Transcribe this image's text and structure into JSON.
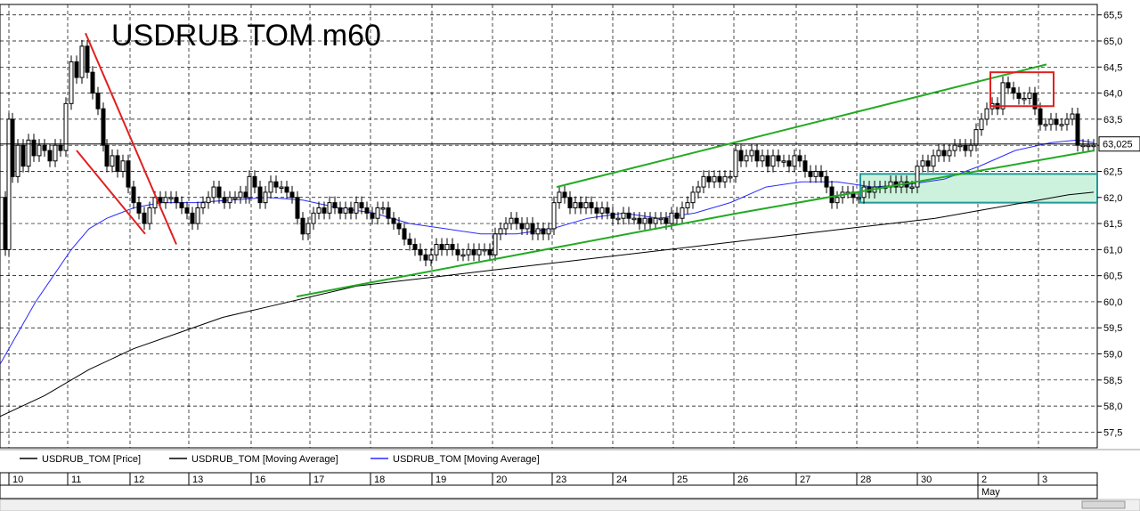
{
  "chart_data": {
    "type": "candlestick",
    "title": "USDRUB   TOM   m60",
    "ylim": [
      57.2,
      65.7
    ],
    "y_ticks": [
      "65,5",
      "65,0",
      "64,5",
      "64,0",
      "63,5",
      "63,0",
      "62,5",
      "62,0",
      "61,5",
      "61,0",
      "60,5",
      "60,0",
      "59,5",
      "59,0",
      "58,5",
      "58,0",
      "57,5"
    ],
    "y_tick_values": [
      65.5,
      65.0,
      64.5,
      64.0,
      63.5,
      63.0,
      62.5,
      62.0,
      61.5,
      61.0,
      60.5,
      60.0,
      59.5,
      59.0,
      58.5,
      58.0,
      57.5
    ],
    "last_price_label": "63,025",
    "last_price": 63.025,
    "x_day_labels": [
      "10",
      "11",
      "12",
      "13",
      "16",
      "17",
      "18",
      "19",
      "20",
      "23",
      "24",
      "25",
      "26",
      "27",
      "28",
      "30",
      "2",
      "3"
    ],
    "x_month_label": "May",
    "legend": [
      {
        "label": "USDRUB_TOM [Price]",
        "color": "#000000"
      },
      {
        "label": "USDRUB_TOM [Moving Average]",
        "color": "#000000"
      },
      {
        "label": "USDRUB_TOM [Moving Average]",
        "color": "#2a2aff"
      }
    ],
    "price_path": [
      [
        0,
        62.0
      ],
      [
        6,
        61.0
      ],
      [
        10,
        63.5
      ],
      [
        14,
        62.4
      ],
      [
        20,
        63.0
      ],
      [
        26,
        62.6
      ],
      [
        32,
        63.1
      ],
      [
        38,
        62.8
      ],
      [
        44,
        63.0
      ],
      [
        50,
        62.9
      ],
      [
        56,
        62.7
      ],
      [
        62,
        63.0
      ],
      [
        68,
        62.9
      ],
      [
        74,
        63.8
      ],
      [
        80,
        64.6
      ],
      [
        86,
        64.3
      ],
      [
        92,
        64.9
      ],
      [
        98,
        64.4
      ],
      [
        104,
        64.0
      ],
      [
        110,
        63.7
      ],
      [
        116,
        63.0
      ],
      [
        120,
        62.6
      ],
      [
        126,
        62.8
      ],
      [
        132,
        62.5
      ],
      [
        138,
        62.7
      ],
      [
        144,
        62.2
      ],
      [
        150,
        61.9
      ],
      [
        156,
        61.7
      ],
      [
        162,
        61.5
      ],
      [
        168,
        61.8
      ],
      [
        174,
        62.0
      ],
      [
        180,
        61.9
      ],
      [
        186,
        62.0
      ],
      [
        192,
        62.0
      ],
      [
        198,
        61.9
      ],
      [
        204,
        61.8
      ],
      [
        210,
        61.7
      ],
      [
        216,
        61.5
      ],
      [
        222,
        61.8
      ],
      [
        228,
        61.9
      ],
      [
        234,
        62.0
      ],
      [
        240,
        62.2
      ],
      [
        246,
        62.0
      ],
      [
        252,
        61.9
      ],
      [
        258,
        62.0
      ],
      [
        264,
        62.0
      ],
      [
        270,
        62.1
      ],
      [
        276,
        62.0
      ],
      [
        280,
        62.4
      ],
      [
        286,
        62.2
      ],
      [
        292,
        61.9
      ],
      [
        298,
        62.1
      ],
      [
        304,
        62.3
      ],
      [
        310,
        62.2
      ],
      [
        316,
        62.2
      ],
      [
        322,
        62.1
      ],
      [
        328,
        62.0
      ],
      [
        334,
        61.6
      ],
      [
        340,
        61.3
      ],
      [
        346,
        61.5
      ],
      [
        352,
        61.7
      ],
      [
        358,
        61.8
      ],
      [
        364,
        61.7
      ],
      [
        370,
        61.9
      ],
      [
        376,
        61.8
      ],
      [
        382,
        61.7
      ],
      [
        388,
        61.8
      ],
      [
        394,
        61.7
      ],
      [
        400,
        61.9
      ],
      [
        406,
        61.8
      ],
      [
        412,
        61.7
      ],
      [
        418,
        61.6
      ],
      [
        424,
        61.8
      ],
      [
        430,
        61.8
      ],
      [
        436,
        61.6
      ],
      [
        442,
        61.5
      ],
      [
        448,
        61.4
      ],
      [
        454,
        61.2
      ],
      [
        460,
        61.1
      ],
      [
        466,
        61.0
      ],
      [
        472,
        60.9
      ],
      [
        478,
        60.8
      ],
      [
        484,
        60.9
      ],
      [
        490,
        61.1
      ],
      [
        496,
        61.0
      ],
      [
        502,
        61.1
      ],
      [
        508,
        61.0
      ],
      [
        514,
        60.9
      ],
      [
        520,
        60.9
      ],
      [
        526,
        61.0
      ],
      [
        532,
        60.9
      ],
      [
        538,
        61.0
      ],
      [
        544,
        61.0
      ],
      [
        550,
        60.9
      ],
      [
        556,
        61.3
      ],
      [
        562,
        61.4
      ],
      [
        568,
        61.5
      ],
      [
        574,
        61.6
      ],
      [
        580,
        61.5
      ],
      [
        586,
        61.4
      ],
      [
        592,
        61.5
      ],
      [
        598,
        61.3
      ],
      [
        604,
        61.4
      ],
      [
        610,
        61.3
      ],
      [
        616,
        61.4
      ],
      [
        622,
        61.9
      ],
      [
        628,
        62.1
      ],
      [
        634,
        62.0
      ],
      [
        640,
        61.8
      ],
      [
        646,
        61.9
      ],
      [
        652,
        61.8
      ],
      [
        658,
        61.9
      ],
      [
        664,
        61.8
      ],
      [
        670,
        61.7
      ],
      [
        676,
        61.8
      ],
      [
        682,
        61.7
      ],
      [
        688,
        61.6
      ],
      [
        694,
        61.6
      ],
      [
        700,
        61.7
      ],
      [
        706,
        61.6
      ],
      [
        712,
        61.6
      ],
      [
        718,
        61.5
      ],
      [
        724,
        61.6
      ],
      [
        730,
        61.5
      ],
      [
        736,
        61.6
      ],
      [
        742,
        61.6
      ],
      [
        748,
        61.5
      ],
      [
        754,
        61.7
      ],
      [
        760,
        61.6
      ],
      [
        766,
        61.8
      ],
      [
        772,
        61.9
      ],
      [
        778,
        62.1
      ],
      [
        784,
        62.2
      ],
      [
        790,
        62.4
      ],
      [
        796,
        62.3
      ],
      [
        802,
        62.4
      ],
      [
        808,
        62.3
      ],
      [
        814,
        62.4
      ],
      [
        820,
        62.4
      ],
      [
        826,
        62.9
      ],
      [
        832,
        62.7
      ],
      [
        838,
        62.8
      ],
      [
        844,
        62.9
      ],
      [
        850,
        62.7
      ],
      [
        856,
        62.8
      ],
      [
        862,
        62.6
      ],
      [
        868,
        62.8
      ],
      [
        874,
        62.7
      ],
      [
        880,
        62.7
      ],
      [
        886,
        62.6
      ],
      [
        892,
        62.8
      ],
      [
        898,
        62.7
      ],
      [
        904,
        62.5
      ],
      [
        910,
        62.4
      ],
      [
        916,
        62.5
      ],
      [
        922,
        62.4
      ],
      [
        928,
        62.2
      ],
      [
        934,
        61.9
      ],
      [
        940,
        62.0
      ],
      [
        946,
        62.1
      ],
      [
        952,
        62.1
      ],
      [
        958,
        62.0
      ],
      [
        964,
        62.0
      ],
      [
        970,
        62.2
      ],
      [
        976,
        62.1
      ],
      [
        982,
        62.2
      ],
      [
        988,
        62.2
      ],
      [
        994,
        62.2
      ],
      [
        1000,
        62.3
      ],
      [
        1006,
        62.2
      ],
      [
        1012,
        62.3
      ],
      [
        1018,
        62.2
      ],
      [
        1024,
        62.2
      ],
      [
        1030,
        62.6
      ],
      [
        1036,
        62.7
      ],
      [
        1042,
        62.6
      ],
      [
        1048,
        62.8
      ],
      [
        1054,
        62.9
      ],
      [
        1060,
        62.8
      ],
      [
        1066,
        62.9
      ],
      [
        1072,
        63.0
      ],
      [
        1078,
        63.0
      ],
      [
        1084,
        62.9
      ],
      [
        1090,
        63.0
      ],
      [
        1096,
        63.3
      ],
      [
        1102,
        63.5
      ],
      [
        1108,
        63.7
      ],
      [
        1114,
        63.8
      ],
      [
        1120,
        63.7
      ],
      [
        1126,
        64.2
      ],
      [
        1132,
        64.1
      ],
      [
        1138,
        64.0
      ],
      [
        1144,
        63.9
      ],
      [
        1150,
        63.9
      ],
      [
        1156,
        64.0
      ],
      [
        1162,
        63.7
      ],
      [
        1168,
        63.4
      ],
      [
        1174,
        63.4
      ],
      [
        1180,
        63.5
      ],
      [
        1186,
        63.4
      ],
      [
        1192,
        63.4
      ],
      [
        1198,
        63.5
      ],
      [
        1204,
        63.6
      ],
      [
        1210,
        63.0
      ],
      [
        1216,
        63.0
      ],
      [
        1222,
        63.0
      ],
      [
        1228,
        63.0
      ]
    ],
    "ma_long_path": [
      [
        0,
        57.8
      ],
      [
        50,
        58.2
      ],
      [
        100,
        58.7
      ],
      [
        150,
        59.1
      ],
      [
        200,
        59.4
      ],
      [
        250,
        59.7
      ],
      [
        300,
        59.9
      ],
      [
        350,
        60.1
      ],
      [
        400,
        60.3
      ],
      [
        450,
        60.4
      ],
      [
        500,
        60.5
      ],
      [
        550,
        60.6
      ],
      [
        600,
        60.7
      ],
      [
        650,
        60.8
      ],
      [
        700,
        60.9
      ],
      [
        750,
        61.0
      ],
      [
        800,
        61.1
      ],
      [
        850,
        61.2
      ],
      [
        900,
        61.3
      ],
      [
        950,
        61.4
      ],
      [
        1000,
        61.5
      ],
      [
        1050,
        61.6
      ],
      [
        1100,
        61.75
      ],
      [
        1150,
        61.9
      ],
      [
        1200,
        62.05
      ],
      [
        1228,
        62.1
      ]
    ],
    "ma_short_path": [
      [
        0,
        58.8
      ],
      [
        20,
        59.4
      ],
      [
        40,
        60.0
      ],
      [
        60,
        60.5
      ],
      [
        80,
        61.0
      ],
      [
        100,
        61.4
      ],
      [
        120,
        61.6
      ],
      [
        150,
        61.8
      ],
      [
        180,
        61.9
      ],
      [
        220,
        61.9
      ],
      [
        260,
        61.95
      ],
      [
        300,
        62.0
      ],
      [
        340,
        61.95
      ],
      [
        380,
        61.8
      ],
      [
        420,
        61.7
      ],
      [
        460,
        61.5
      ],
      [
        500,
        61.4
      ],
      [
        540,
        61.3
      ],
      [
        580,
        61.3
      ],
      [
        620,
        61.4
      ],
      [
        660,
        61.6
      ],
      [
        700,
        61.7
      ],
      [
        740,
        61.6
      ],
      [
        780,
        61.7
      ],
      [
        820,
        61.9
      ],
      [
        860,
        62.2
      ],
      [
        900,
        62.3
      ],
      [
        940,
        62.3
      ],
      [
        980,
        62.2
      ],
      [
        1020,
        62.25
      ],
      [
        1060,
        62.35
      ],
      [
        1100,
        62.6
      ],
      [
        1140,
        62.9
      ],
      [
        1180,
        63.05
      ],
      [
        1210,
        63.1
      ],
      [
        1228,
        63.05
      ]
    ],
    "drawings": {
      "green_lines": [
        [
          [
            333,
            60.1
          ],
          [
            829,
            61.7
          ]
        ],
        [
          [
            829,
            61.7
          ],
          [
            1229,
            62.9
          ]
        ],
        [
          [
            625,
            62.2
          ],
          [
            1175,
            64.55
          ]
        ]
      ],
      "red_lines": [
        [
          [
            96,
            65.15
          ],
          [
            198,
            61.1
          ]
        ],
        [
          [
            86,
            62.9
          ],
          [
            163,
            61.3
          ]
        ]
      ],
      "red_box": {
        "x0": 1112,
        "x1": 1183,
        "y0": 63.75,
        "y1": 64.4
      },
      "green_box": {
        "x0": 966,
        "x1": 1232,
        "y0": 61.9,
        "y1": 62.45,
        "fill": "#ccf2dd",
        "stroke": "#229999"
      }
    }
  },
  "colors": {
    "price": "#000000",
    "ma_long": "#000000",
    "ma_short": "#2a2aff",
    "trend_green": "#22aa22",
    "trend_red": "#e02020"
  }
}
